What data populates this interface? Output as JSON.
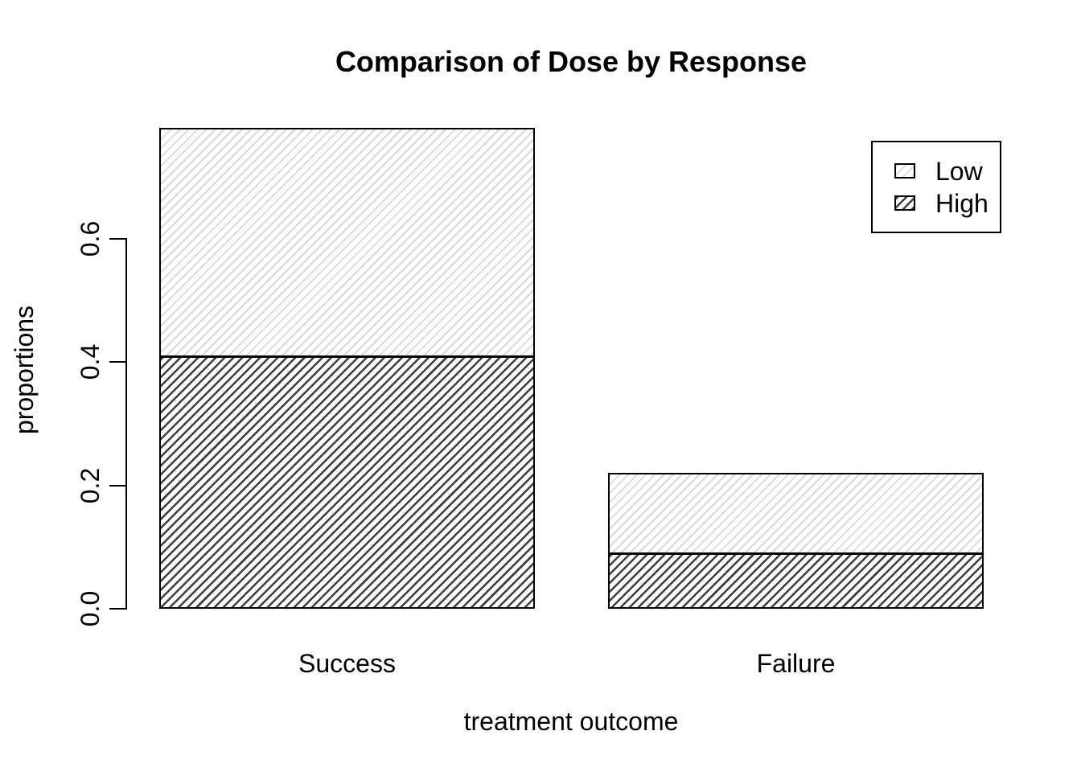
{
  "chart_data": {
    "type": "bar",
    "stacked": true,
    "title": "Comparison of Dose by Response",
    "xlabel": "treatment outcome",
    "ylabel": "proportions",
    "categories": [
      "Success",
      "Failure"
    ],
    "series": [
      {
        "name": "Low",
        "values": [
          0.37,
          0.13
        ],
        "pattern": "light-diagonal",
        "hatch_color": "#d9d9d9"
      },
      {
        "name": "High",
        "values": [
          0.41,
          0.09
        ],
        "pattern": "dark-diagonal",
        "hatch_color": "#3d3d3d"
      }
    ],
    "stack_order_bottom_to_top": [
      "High",
      "Low"
    ],
    "yticks": [
      0.0,
      0.2,
      0.4,
      0.6
    ],
    "ytick_labels": [
      "0.0",
      "0.2",
      "0.4",
      "0.6"
    ],
    "ylim": [
      0,
      0.8
    ],
    "grid": false,
    "legend": {
      "position": "top-right",
      "entries": [
        "Low",
        "High"
      ]
    },
    "background_color": "#ffffff",
    "bar_border_color": "#000000"
  }
}
